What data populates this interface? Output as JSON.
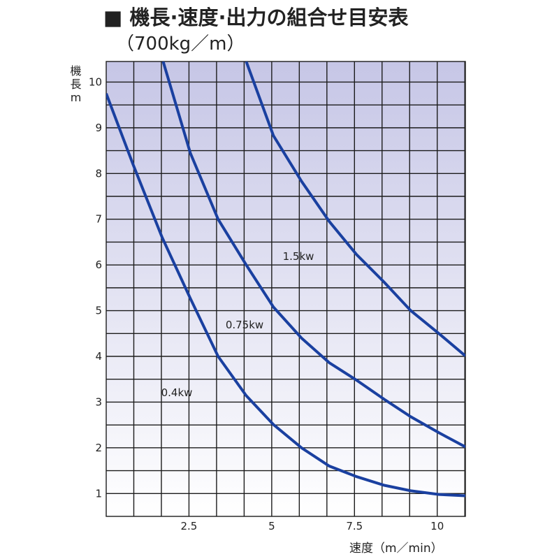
{
  "chart_data": {
    "type": "line",
    "title": "■ 機長·速度·出力の組合せ目安表",
    "subtitle": "（700kg／m）",
    "ylabel": "機長m",
    "xlabel": "速度（m／min）",
    "xlim": [
      0,
      10.85
    ],
    "ylim": [
      0.5,
      10.45
    ],
    "xticks": [
      2.5,
      5,
      7.5,
      10
    ],
    "yticks": [
      1,
      2,
      3,
      4,
      5,
      6,
      7,
      8,
      9,
      10
    ],
    "grid": true,
    "series": [
      {
        "name": "0.4kw",
        "color": "#1a40a0",
        "x": [
          0,
          0.81,
          1.69,
          2.54,
          3.38,
          4.23,
          5.05,
          5.9,
          6.74,
          7.56,
          8.4,
          9.2,
          10.05,
          10.85
        ],
        "values": [
          9.75,
          8.2,
          6.6,
          5.27,
          4.0,
          3.14,
          2.51,
          2.0,
          1.6,
          1.37,
          1.18,
          1.06,
          0.98,
          0.95
        ]
      },
      {
        "name": "0.75kw",
        "color": "#1a40a0",
        "x": [
          1.72,
          2.54,
          3.38,
          4.23,
          5.05,
          5.9,
          6.74,
          7.56,
          8.4,
          9.2,
          10.05,
          10.85
        ],
        "values": [
          10.45,
          8.45,
          7.0,
          6.0,
          5.08,
          4.4,
          3.86,
          3.48,
          3.06,
          2.68,
          2.33,
          2.02
        ]
      },
      {
        "name": "1.5kw",
        "color": "#1a40a0",
        "x": [
          4.23,
          5.05,
          5.9,
          6.74,
          7.56,
          8.4,
          9.2,
          10.05,
          10.85
        ],
        "values": [
          10.45,
          8.83,
          7.83,
          6.95,
          6.23,
          5.62,
          5.0,
          4.5,
          4.01
        ]
      }
    ]
  }
}
